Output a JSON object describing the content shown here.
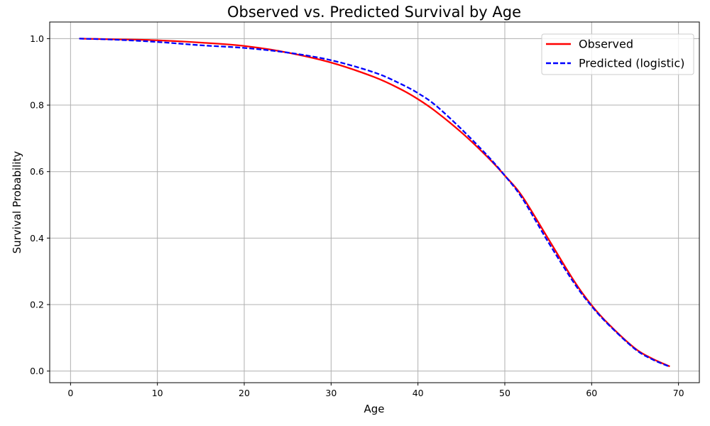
{
  "chart_data": {
    "type": "line",
    "title": "Observed vs. Predicted Survival by Age",
    "xlabel": "Age",
    "ylabel": "Survival Probability",
    "xlim": [
      -2.4,
      72.4
    ],
    "ylim": [
      -0.035,
      1.05
    ],
    "xticks": [
      0,
      10,
      20,
      30,
      40,
      50,
      60,
      70
    ],
    "xtick_labels": [
      "0",
      "10",
      "20",
      "30",
      "40",
      "50",
      "60",
      "70"
    ],
    "yticks": [
      0.0,
      0.2,
      0.4,
      0.6,
      0.8,
      1.0
    ],
    "ytick_labels": [
      "0.0",
      "0.2",
      "0.4",
      "0.6",
      "0.8",
      "1.0"
    ],
    "grid": true,
    "legend_position": "top-right",
    "x": [
      1,
      5,
      10,
      15,
      20,
      25,
      30,
      35,
      38,
      40,
      42,
      45,
      48,
      50,
      52,
      55,
      58,
      60,
      62,
      65,
      67,
      69
    ],
    "series": [
      {
        "name": "Observed",
        "color": "#ff0000",
        "style": "solid",
        "values": [
          1.0,
          0.998,
          0.995,
          0.988,
          0.978,
          0.958,
          0.928,
          0.884,
          0.848,
          0.818,
          0.782,
          0.718,
          0.644,
          0.588,
          0.526,
          0.398,
          0.27,
          0.198,
          0.14,
          0.068,
          0.037,
          0.014
        ]
      },
      {
        "name": "Predicted (logistic)",
        "color": "#0000ff",
        "style": "dashed",
        "values": [
          1.0,
          0.997,
          0.99,
          0.98,
          0.972,
          0.958,
          0.935,
          0.898,
          0.864,
          0.836,
          0.8,
          0.728,
          0.648,
          0.588,
          0.52,
          0.388,
          0.264,
          0.195,
          0.138,
          0.066,
          0.035,
          0.013
        ]
      }
    ]
  }
}
